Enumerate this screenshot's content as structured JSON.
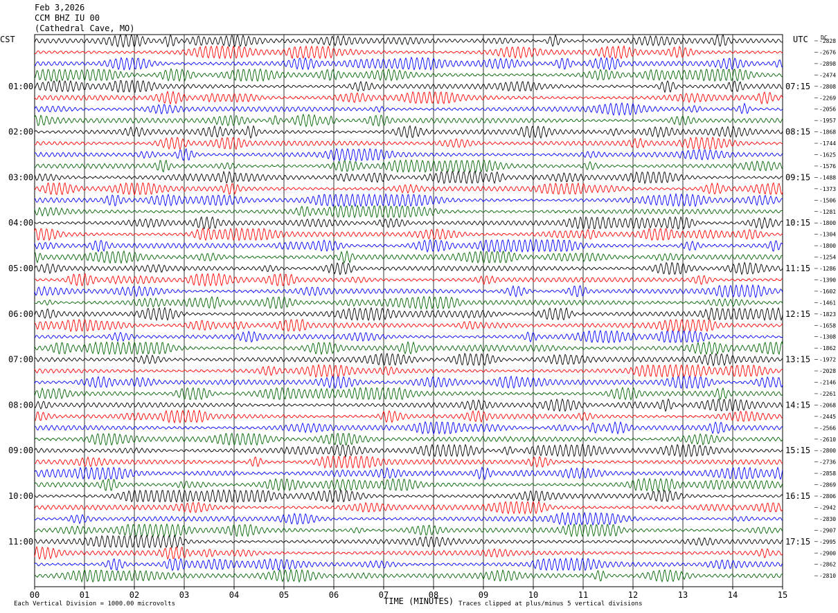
{
  "header": {
    "date": "Feb 3,2026",
    "station": "CCM BHZ IU 00",
    "location": "(Cathedral Cave, MO)"
  },
  "axes": {
    "left_tz": "CST",
    "right_tz": "UTC",
    "dc_label": "DC",
    "x_title": "TIME (MINUTES)"
  },
  "footer": {
    "scale_note": "Each Vertical Division = 1000.00 microvolts",
    "clip_note": "Traces clipped at plus/minus 5 vertical divisions"
  },
  "chart_data": {
    "type": "line",
    "title": "",
    "xlabel": "TIME (MINUTES)",
    "ylabel": "",
    "xlim": [
      0,
      15
    ],
    "x_ticks": [
      "00",
      "01",
      "02",
      "03",
      "04",
      "05",
      "06",
      "07",
      "08",
      "09",
      "10",
      "11",
      "12",
      "13",
      "14",
      "15"
    ],
    "grid": true,
    "trace_colors": [
      "#000000",
      "#ff0000",
      "#0000ff",
      "#006400"
    ],
    "left_ticks": [
      "01:00",
      "02:00",
      "03:00",
      "04:00",
      "05:00",
      "06:00",
      "07:00",
      "08:00",
      "09:00",
      "10:00",
      "11:00"
    ],
    "right_ticks": [
      "07:15",
      "08:15",
      "09:15",
      "10:15",
      "11:15",
      "12:15",
      "13:15",
      "14:15",
      "15:15",
      "16:15",
      "17:15"
    ],
    "dc_offsets": [
      "-2828",
      "-2676",
      "-2898",
      "-2474",
      "-2808",
      "-2269",
      "-2056",
      "-1957",
      "-1868",
      "-1744",
      "-1625",
      "-1576",
      "-1488",
      "-1373",
      "-1506",
      "-1281",
      "-1800",
      "-1304",
      "-1800",
      "-1254",
      "-1286",
      "-1390",
      "-1602",
      "-1461",
      "-1823",
      "-1658",
      "-1308",
      "-1862",
      "-1972",
      "-2028",
      "-2146",
      "-2261",
      "-2068",
      "-2445",
      "-2566",
      "-2610",
      "-2800",
      "-2736",
      "-2858",
      "-2869",
      "-2806",
      "-2942",
      "-2830",
      "-2907",
      "-2995",
      "-2900",
      "-2862",
      "-2810"
    ]
  }
}
